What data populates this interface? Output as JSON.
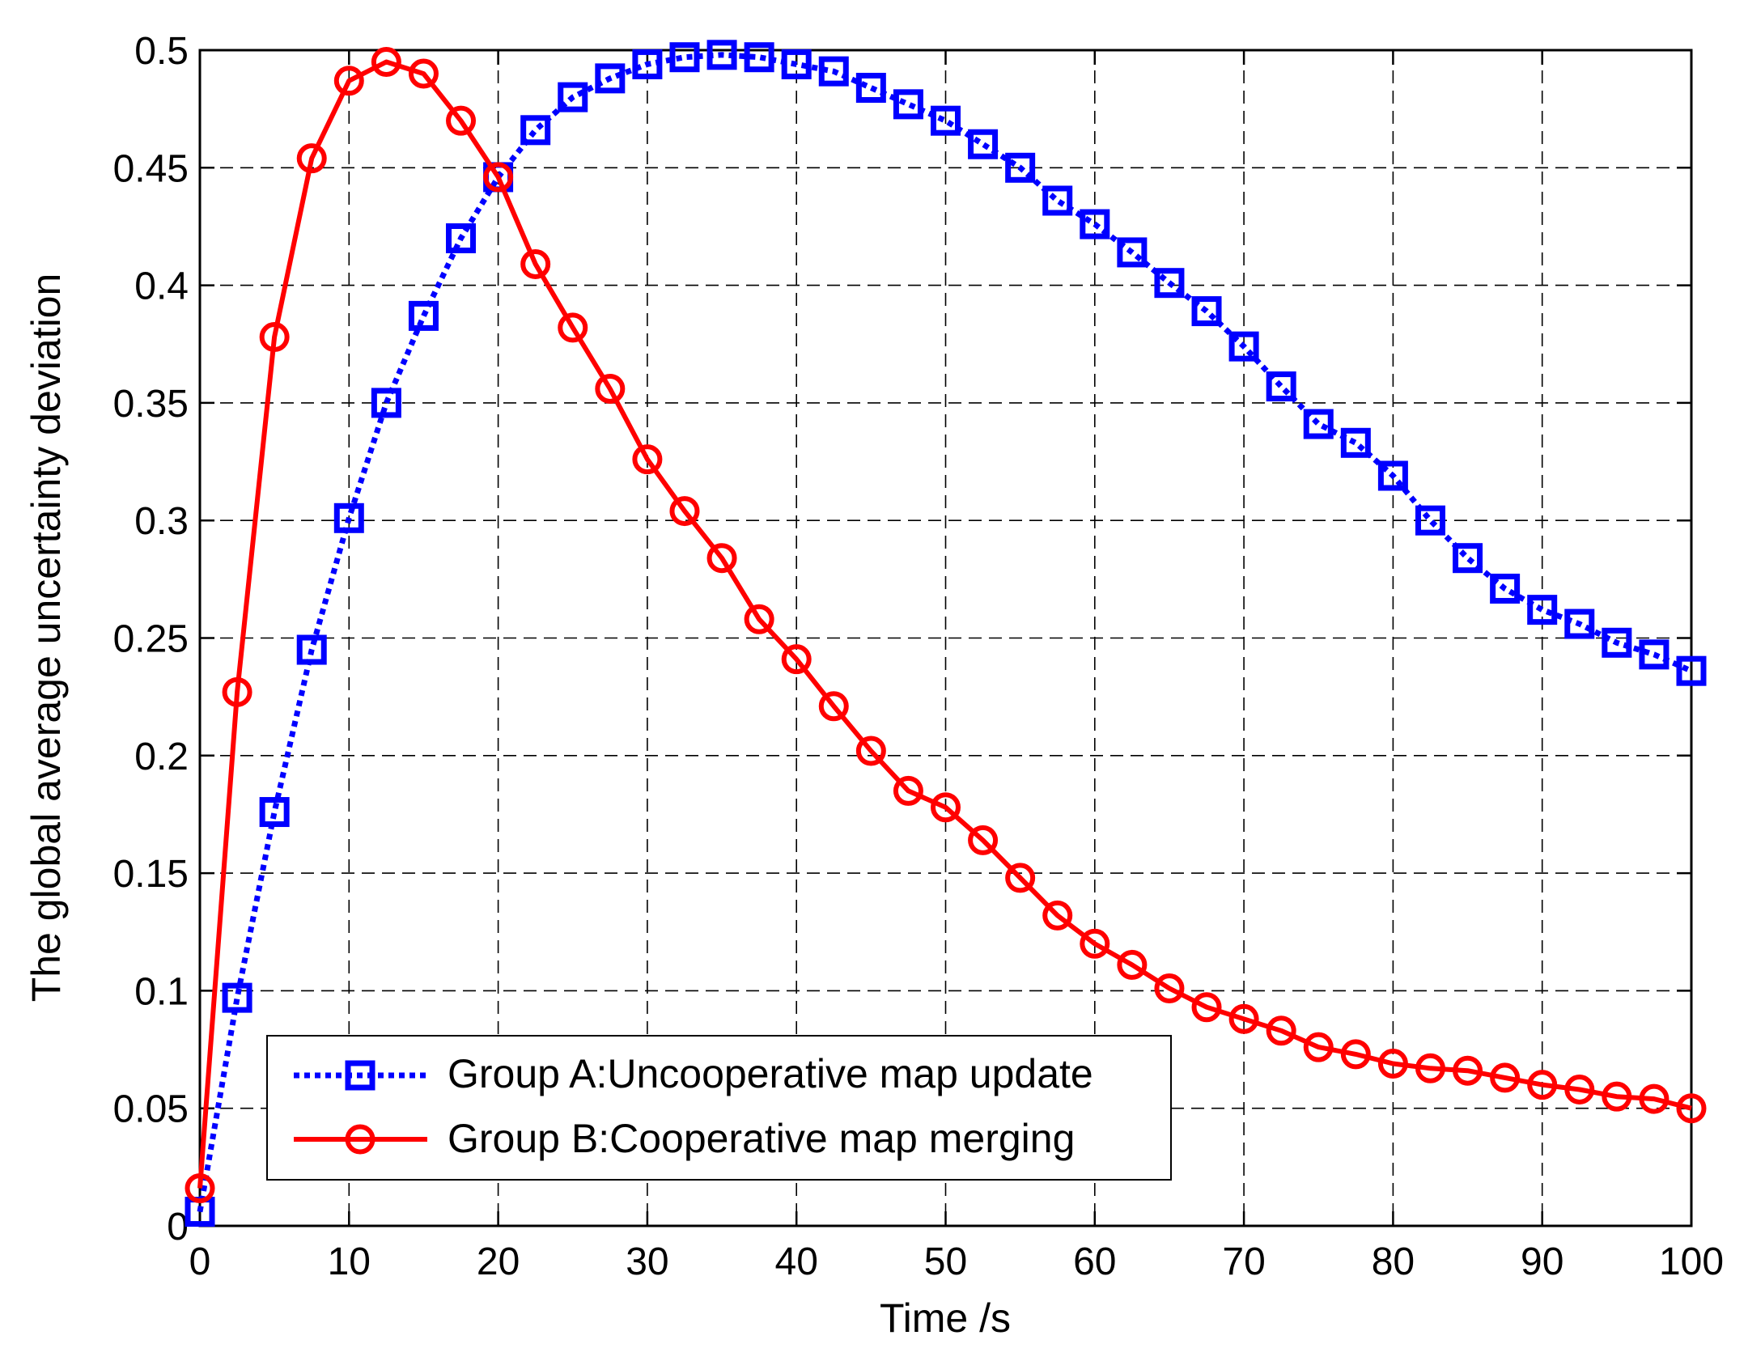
{
  "chart_data": {
    "type": "line",
    "title": "",
    "xlabel": "Time /s",
    "ylabel": "The global average uncertainty deviation",
    "xlim": [
      0,
      100
    ],
    "ylim": [
      0,
      0.5
    ],
    "x_ticks": [
      "0",
      "10",
      "20",
      "30",
      "40",
      "50",
      "60",
      "70",
      "80",
      "90",
      "100"
    ],
    "y_ticks": [
      "0",
      "0.05",
      "0.1",
      "0.15",
      "0.2",
      "0.25",
      "0.3",
      "0.35",
      "0.4",
      "0.45",
      "0.5"
    ],
    "grid": true,
    "legend_position": "bottom-left",
    "x": [
      0,
      2.5,
      5,
      7.5,
      10,
      12.5,
      15,
      17.5,
      20,
      22.5,
      25,
      27.5,
      30,
      32.5,
      35,
      37.5,
      40,
      42.5,
      45,
      47.5,
      50,
      52.5,
      55,
      57.5,
      60,
      62.5,
      65,
      67.5,
      70,
      72.5,
      75,
      77.5,
      80,
      82.5,
      85,
      87.5,
      90,
      92.5,
      95,
      97.5,
      100
    ],
    "series": [
      {
        "name": "Group A:Uncooperative map update",
        "color": "#0000ff",
        "line_style": "dotted",
        "marker": "square",
        "values": [
          0.006,
          0.097,
          0.176,
          0.245,
          0.301,
          0.35,
          0.387,
          0.42,
          0.446,
          0.466,
          0.48,
          0.488,
          0.494,
          0.497,
          0.498,
          0.497,
          0.494,
          0.491,
          0.484,
          0.477,
          0.47,
          0.46,
          0.45,
          0.436,
          0.426,
          0.414,
          0.401,
          0.389,
          0.374,
          0.357,
          0.341,
          0.333,
          0.319,
          0.3,
          0.284,
          0.271,
          0.262,
          0.256,
          0.248,
          0.243,
          0.236
        ]
      },
      {
        "name": "Group B:Cooperative map merging",
        "color": "#ff0000",
        "line_style": "solid",
        "marker": "circle",
        "values": [
          0.016,
          0.227,
          0.378,
          0.454,
          0.487,
          0.495,
          0.49,
          0.47,
          0.446,
          0.409,
          0.382,
          0.356,
          0.326,
          0.304,
          0.284,
          0.258,
          0.241,
          0.221,
          0.202,
          0.185,
          0.178,
          0.164,
          0.148,
          0.132,
          0.12,
          0.111,
          0.101,
          0.093,
          0.088,
          0.083,
          0.076,
          0.073,
          0.069,
          0.067,
          0.066,
          0.063,
          0.06,
          0.058,
          0.055,
          0.054,
          0.05
        ]
      }
    ]
  }
}
